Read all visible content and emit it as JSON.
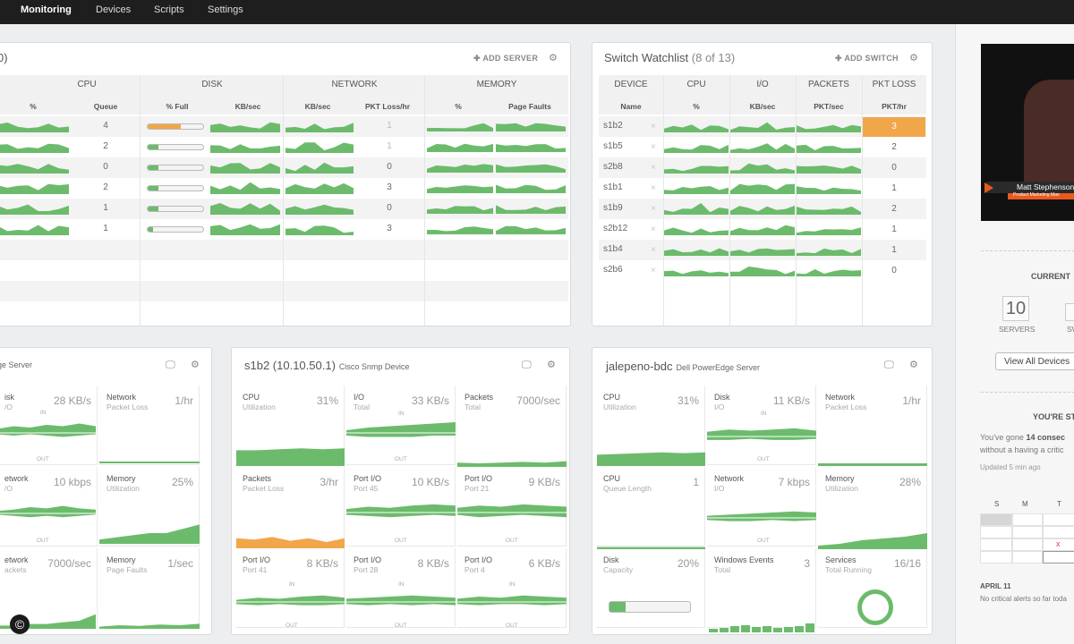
{
  "nav": {
    "items": [
      "Monitoring",
      "Devices",
      "Scripts",
      "Settings"
    ]
  },
  "colors": {
    "green": "#6cbb6c",
    "orange": "#f2a64a",
    "nav_bg": "#1e1e1e"
  },
  "server": {
    "title_fragment": "0)",
    "add_label": "ADD SERVER",
    "groups": [
      "CPU",
      "DISK",
      "NETWORK",
      "MEMORY"
    ],
    "cols": [
      "%",
      "Queue",
      "% Full",
      "KB/sec",
      "KB/sec",
      "PKT Loss/hr",
      "%",
      "Page Faults"
    ],
    "queue": [
      "4",
      "2",
      "0",
      "2",
      "1",
      "1"
    ],
    "pktloss": [
      "1",
      "1",
      "0",
      "3",
      "0",
      "3"
    ],
    "fullpct": [
      0.6,
      0.2,
      0.2,
      0.2,
      0.2,
      0.1
    ]
  },
  "switch": {
    "title": "Switch Watchlist",
    "count": "(8 of 13)",
    "add_label": "ADD SWITCH",
    "groups": [
      "DEVICE",
      "CPU",
      "I/O",
      "PACKETS",
      "PKT LOSS"
    ],
    "cols": [
      "Name",
      "%",
      "KB/sec",
      "PKT/sec",
      "PKT/hr"
    ],
    "devices": [
      "s1b2",
      "s1b5",
      "s2b8",
      "s1b1",
      "s1b9",
      "s2b12",
      "s1b4",
      "s2b6"
    ],
    "pktloss": [
      "3",
      "2",
      "0",
      "1",
      "2",
      "1",
      "1",
      "0"
    ]
  },
  "card1": {
    "title_fragment": "ge Server",
    "tiles": [
      {
        "label": "isk",
        "sub": "/O",
        "value": "28 KB/s",
        "in": "IN",
        "out": "OUT"
      },
      {
        "label": "Network",
        "sub": "Packet Loss",
        "value": "1/hr"
      },
      {
        "label": "etwork",
        "sub": "/O",
        "value": "10 kbps",
        "out": "OUT"
      },
      {
        "label": "Memory",
        "sub": "Utilization",
        "value": "25%"
      },
      {
        "label": "etwork",
        "sub": "ackets",
        "value": "7000/sec"
      },
      {
        "label": "Memory",
        "sub": "Page Faults",
        "value": "1/sec"
      }
    ]
  },
  "card2": {
    "title": "s1b2 (10.10.50.1)",
    "subtitle": "Cisco Snmp Device",
    "tiles": [
      {
        "label": "CPU",
        "sub": "Utilization",
        "value": "31%"
      },
      {
        "label": "I/O",
        "sub": "Total",
        "value": "33 KB/s",
        "in": "IN",
        "out": "OUT"
      },
      {
        "label": "Packets",
        "sub": "Total",
        "value": "7000/sec"
      },
      {
        "label": "Packets",
        "sub": "Packet Loss",
        "value": "3/hr"
      },
      {
        "label": "Port I/O",
        "sub": "Port 45",
        "value": "10 KB/s",
        "in": "IN",
        "out": "OUT"
      },
      {
        "label": "Port I/O",
        "sub": "Port 21",
        "value": "9 KB/s",
        "in": "IN",
        "out": "OUT"
      },
      {
        "label": "Port I/O",
        "sub": "Port 41",
        "value": "8 KB/s",
        "in": "IN",
        "out": "OUT"
      },
      {
        "label": "Port I/O",
        "sub": "Port 28",
        "value": "8 KB/s",
        "in": "IN",
        "out": "OUT"
      },
      {
        "label": "Port I/O",
        "sub": "Port 4",
        "value": "6 KB/s",
        "in": "IN",
        "out": "OUT"
      }
    ]
  },
  "card3": {
    "title": "jalepeno-bdc",
    "subtitle": "Dell PowerEdge Server",
    "tiles": [
      {
        "label": "CPU",
        "sub": "Utilization",
        "value": "31%"
      },
      {
        "label": "Disk",
        "sub": "I/O",
        "value": "11 KB/s",
        "in": "IN",
        "out": "OUT"
      },
      {
        "label": "Network",
        "sub": "Packet Loss",
        "value": "1/hr"
      },
      {
        "label": "CPU",
        "sub": "Queue Length",
        "value": "1"
      },
      {
        "label": "Network",
        "sub": "I/O",
        "value": "7 kbps",
        "in": "IN",
        "out": "OUT"
      },
      {
        "label": "Memory",
        "sub": "Utilization",
        "value": "28%"
      },
      {
        "label": "Disk",
        "sub": "Capacity",
        "value": "20%"
      },
      {
        "label": "Windows Events",
        "sub": "Total",
        "value": "3"
      },
      {
        "label": "Services",
        "sub": "Total Running",
        "value": "16/16"
      }
    ],
    "disk_capacity": 0.2
  },
  "right": {
    "video_name": "Matt Stephenson",
    "video_role": "Product Marketing Man",
    "current": "CURRENT",
    "servers_count": "10",
    "servers_label": "SERVERS",
    "sw_fragment": "SW",
    "view_all": "View All Devices",
    "streak_title": "YOU'RE ST",
    "streak_line1_a": "You've gone ",
    "streak_line1_b": "14 consec",
    "streak_line2": "without a having a critic",
    "updated": "Updated 5 min ago",
    "cal_days": [
      "S",
      "M",
      "T"
    ],
    "cal_mark": "x",
    "date": "APRIL 11",
    "date_note": "No critical alerts so far toda"
  },
  "watermark": "©"
}
